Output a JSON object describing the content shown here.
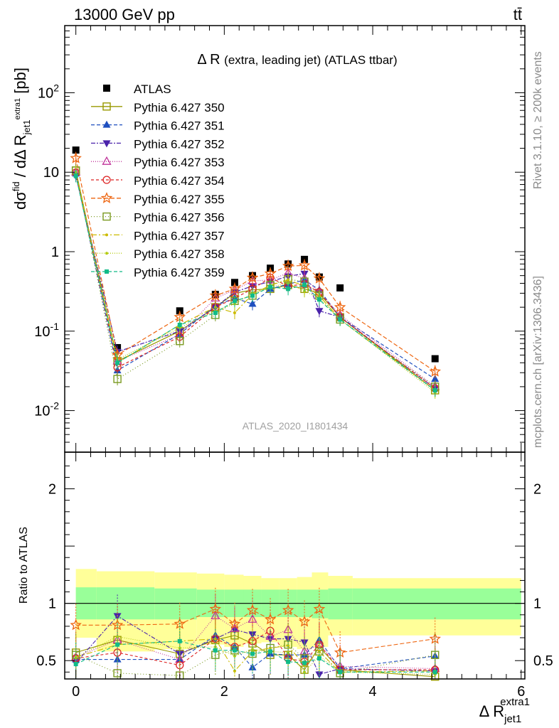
{
  "header": {
    "left": "13000 GeV pp",
    "right": "tt̄"
  },
  "side_labels": {
    "top": "Rivet 3.1.10, ≥ 200k events",
    "bottom": "mcplots.cern.ch [arXiv:1306.3436]"
  },
  "chart_data": [
    {
      "type": "scatter",
      "title": "Δ R (extra, leading jet) (ATLAS ttbar)",
      "title_main": "Δ R",
      "title_rest": "(extra, leading jet) (ATLAS ttbar)",
      "ylabel": "dσ^fid / dΔ R_jet1^extra1 [pb]",
      "ylabel_unit": "[pb]",
      "xlabel": "Δ R_jet1^extra1",
      "watermark": "ATLAS_2020_I1801434",
      "yscale": "log",
      "xlim": [
        -0.15,
        6.05
      ],
      "ylim": [
        0.003,
        700
      ],
      "yticks": [
        {
          "v": 0.01,
          "label": "10^-2"
        },
        {
          "v": 0.1,
          "label": "10^-1"
        },
        {
          "v": 1,
          "label": "1"
        },
        {
          "v": 10,
          "label": "10"
        },
        {
          "v": 100,
          "label": "10^2"
        }
      ],
      "xticks": [
        0,
        2,
        4,
        6
      ],
      "x": [
        0.0,
        0.56,
        1.4,
        1.88,
        2.14,
        2.38,
        2.62,
        2.86,
        3.08,
        3.28,
        3.56,
        4.84
      ],
      "series": [
        {
          "name": "ATLAS",
          "color": "#000000",
          "marker": "square-filled",
          "dash": "none",
          "values": [
            19,
            0.062,
            0.18,
            0.29,
            0.41,
            0.5,
            0.62,
            0.7,
            0.8,
            0.48,
            0.35,
            0.045
          ]
        },
        {
          "name": "Pythia 6.427 350",
          "color": "#999900",
          "marker": "square-open",
          "dash": "solid",
          "values": [
            10.5,
            0.042,
            0.1,
            0.2,
            0.3,
            0.33,
            0.34,
            0.38,
            0.34,
            0.3,
            0.15,
            0.018
          ]
        },
        {
          "name": "Pythia 6.427 351",
          "color": "#1f4fbf",
          "marker": "triangle-up-filled",
          "dash": "5,3",
          "values": [
            9.6,
            0.032,
            0.092,
            0.21,
            0.26,
            0.22,
            0.34,
            0.39,
            0.44,
            0.33,
            0.15,
            0.025
          ]
        },
        {
          "name": "Pythia 6.427 352",
          "color": "#4a22aa",
          "marker": "triangle-down-filled",
          "dash": "6,2,2,2",
          "values": [
            9.0,
            0.055,
            0.1,
            0.2,
            0.31,
            0.37,
            0.42,
            0.49,
            0.53,
            0.18,
            0.15,
            0.019
          ]
        },
        {
          "name": "Pythia 6.427 353",
          "color": "#c0339a",
          "marker": "triangle-up-open",
          "dash": "1,2",
          "values": [
            10,
            0.042,
            0.09,
            0.26,
            0.33,
            0.43,
            0.44,
            0.54,
            0.46,
            0.31,
            0.16,
            0.02
          ]
        },
        {
          "name": "Pythia 6.427 354",
          "color": "#dd2222",
          "marker": "circle-open",
          "dash": "4,3",
          "values": [
            9.9,
            0.035,
            0.085,
            0.2,
            0.26,
            0.34,
            0.47,
            0.37,
            0.39,
            0.31,
            0.15,
            0.019
          ]
        },
        {
          "name": "Pythia 6.427 355",
          "color": "#ee6611",
          "marker": "star-open",
          "dash": "6,3",
          "values": [
            15,
            0.05,
            0.15,
            0.28,
            0.34,
            0.47,
            0.53,
            0.66,
            0.67,
            0.46,
            0.2,
            0.031
          ]
        },
        {
          "name": "Pythia 6.427 356",
          "color": "#7a9a20",
          "marker": "square-open",
          "dash": "1,3",
          "values": [
            10.5,
            0.025,
            0.075,
            0.16,
            0.24,
            0.28,
            0.38,
            0.45,
            0.42,
            0.28,
            0.14,
            0.02
          ]
        },
        {
          "name": "Pythia 6.427 357",
          "color": "#ccbb00",
          "marker": "dot",
          "dash": "8,3,2,3",
          "values": [
            10,
            0.04,
            0.12,
            0.2,
            0.17,
            0.29,
            0.38,
            0.44,
            0.37,
            0.28,
            0.14,
            0.018
          ]
        },
        {
          "name": "Pythia 6.427 358",
          "color": "#b5cc10",
          "marker": "dot",
          "dash": "1,2",
          "values": [
            10,
            0.044,
            0.11,
            0.18,
            0.22,
            0.3,
            0.36,
            0.4,
            0.32,
            0.26,
            0.14,
            0.017
          ]
        },
        {
          "name": "Pythia 6.427 359",
          "color": "#11bb88",
          "marker": "square-filled-small",
          "dash": "5,3",
          "values": [
            9.0,
            0.04,
            0.12,
            0.17,
            0.24,
            0.28,
            0.36,
            0.34,
            0.38,
            0.25,
            0.14,
            0.018
          ]
        }
      ]
    },
    {
      "type": "scatter",
      "ylabel": "Ratio to ATLAS",
      "ylim": [
        0.34,
        2.32
      ],
      "yticks": [
        0.5,
        1,
        2
      ],
      "bands": {
        "edges": [
          0.0,
          0.28,
          1.06,
          1.63,
          2.0,
          2.26,
          2.5,
          2.74,
          2.98,
          3.18,
          3.4,
          3.73,
          6.0
        ],
        "yellow_lo": [
          0.7,
          0.58,
          0.6,
          0.64,
          0.62,
          0.65,
          0.66,
          0.62,
          0.6,
          0.62,
          0.72,
          0.72
        ],
        "yellow_hi": [
          1.3,
          1.28,
          1.27,
          1.26,
          1.25,
          1.24,
          1.22,
          1.22,
          1.23,
          1.27,
          1.24,
          1.22
        ],
        "green_lo": [
          0.86,
          0.86,
          0.86,
          0.88,
          0.88,
          0.88,
          0.88,
          0.88,
          0.88,
          0.87,
          0.86,
          0.86
        ],
        "green_hi": [
          1.14,
          1.14,
          1.13,
          1.12,
          1.12,
          1.12,
          1.12,
          1.12,
          1.12,
          1.12,
          1.13,
          1.13
        ]
      },
      "series": [
        {
          "name": "Pythia 6.427 350",
          "values": [
            0.57,
            0.68,
            0.56,
            0.68,
            0.72,
            0.65,
            0.55,
            0.55,
            0.42,
            0.62,
            0.42,
            0.36
          ]
        },
        {
          "name": "Pythia 6.427 351",
          "values": [
            0.51,
            0.51,
            0.51,
            0.72,
            0.62,
            0.44,
            0.56,
            0.55,
            0.55,
            0.68,
            0.43,
            0.54
          ]
        },
        {
          "name": "Pythia 6.427 352",
          "values": [
            0.48,
            0.89,
            0.56,
            0.69,
            0.77,
            0.73,
            0.69,
            0.69,
            0.66,
            0.38,
            0.43,
            0.41
          ]
        },
        {
          "name": "Pythia 6.427 353",
          "values": [
            0.53,
            0.68,
            0.51,
            0.89,
            0.78,
            0.86,
            0.71,
            0.77,
            0.58,
            0.64,
            0.45,
            0.43
          ]
        },
        {
          "name": "Pythia 6.427 354",
          "values": [
            0.52,
            0.57,
            0.46,
            0.69,
            0.62,
            0.67,
            0.76,
            0.52,
            0.49,
            0.64,
            0.42,
            0.42
          ]
        },
        {
          "name": "Pythia 6.427 355",
          "values": [
            0.81,
            0.81,
            0.82,
            0.95,
            0.82,
            0.94,
            0.86,
            0.94,
            0.84,
            0.95,
            0.57,
            0.69
          ]
        },
        {
          "name": "Pythia 6.427 356",
          "values": [
            0.55,
            0.39,
            0.37,
            0.55,
            0.59,
            0.56,
            0.61,
            0.64,
            0.52,
            0.58,
            0.39,
            0.55
          ]
        },
        {
          "name": "Pythia 6.427 357",
          "values": [
            0.53,
            0.64,
            0.67,
            0.69,
            0.41,
            0.58,
            0.61,
            0.63,
            0.46,
            0.58,
            0.4,
            0.41
          ]
        },
        {
          "name": "Pythia 6.427 358",
          "values": [
            0.53,
            0.71,
            0.61,
            0.62,
            0.54,
            0.6,
            0.58,
            0.57,
            0.4,
            0.54,
            0.4,
            0.38
          ]
        },
        {
          "name": "Pythia 6.427 359",
          "values": [
            0.47,
            0.64,
            0.67,
            0.59,
            0.59,
            0.56,
            0.58,
            0.49,
            0.48,
            0.52,
            0.4,
            0.4
          ]
        }
      ]
    }
  ]
}
